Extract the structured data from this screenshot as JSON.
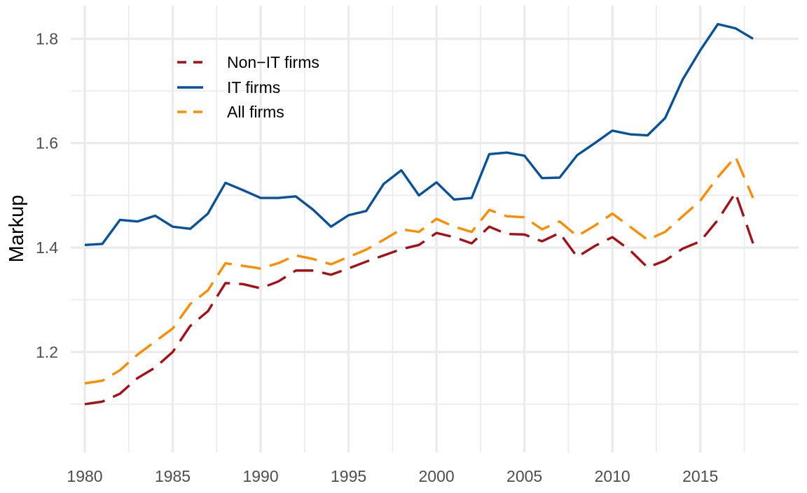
{
  "chart_data": {
    "type": "line",
    "title": "",
    "xlabel": "",
    "ylabel": "Markup",
    "xlim": [
      1980,
      2018
    ],
    "ylim": [
      1.1,
      1.83
    ],
    "x_ticks": [
      "1980",
      "1985",
      "1990",
      "1995",
      "2000",
      "2005",
      "2010",
      "2015"
    ],
    "y_ticks": [
      "1.2",
      "1.4",
      "1.6",
      "1.8"
    ],
    "grid": true,
    "legend_position": "top-left",
    "x": [
      1980,
      1981,
      1982,
      1983,
      1984,
      1985,
      1986,
      1987,
      1988,
      1989,
      1990,
      1991,
      1992,
      1993,
      1994,
      1995,
      1996,
      1997,
      1998,
      1999,
      2000,
      2001,
      2002,
      2003,
      2004,
      2005,
      2006,
      2007,
      2008,
      2009,
      2010,
      2011,
      2012,
      2013,
      2014,
      2015,
      2016,
      2017,
      2018
    ],
    "series": [
      {
        "name": "Non−IT firms",
        "color": "#a50f15",
        "dash": "dashed",
        "values": [
          1.1,
          1.105,
          1.12,
          1.15,
          1.17,
          1.2,
          1.25,
          1.278,
          1.332,
          1.33,
          1.322,
          1.335,
          1.356,
          1.356,
          1.348,
          1.36,
          1.373,
          1.385,
          1.397,
          1.405,
          1.428,
          1.42,
          1.408,
          1.44,
          1.426,
          1.425,
          1.412,
          1.428,
          1.382,
          1.403,
          1.42,
          1.395,
          1.362,
          1.375,
          1.398,
          1.412,
          1.453,
          1.505,
          1.408
        ]
      },
      {
        "name": "IT firms",
        "color": "#08519c",
        "dash": "solid",
        "values": [
          1.405,
          1.407,
          1.453,
          1.45,
          1.461,
          1.44,
          1.436,
          1.465,
          1.524,
          1.51,
          1.495,
          1.495,
          1.498,
          1.472,
          1.44,
          1.462,
          1.47,
          1.522,
          1.548,
          1.5,
          1.525,
          1.492,
          1.495,
          1.579,
          1.582,
          1.576,
          1.533,
          1.534,
          1.577,
          1.6,
          1.624,
          1.617,
          1.615,
          1.648,
          1.722,
          1.778,
          1.828,
          1.82,
          1.8
        ]
      },
      {
        "name": "All firms",
        "color": "#ff8c00",
        "dash": "dashed",
        "values": [
          1.14,
          1.145,
          1.165,
          1.195,
          1.22,
          1.245,
          1.292,
          1.318,
          1.37,
          1.365,
          1.36,
          1.37,
          1.385,
          1.378,
          1.368,
          1.382,
          1.396,
          1.415,
          1.435,
          1.43,
          1.455,
          1.44,
          1.43,
          1.472,
          1.46,
          1.458,
          1.435,
          1.45,
          1.422,
          1.442,
          1.465,
          1.44,
          1.415,
          1.43,
          1.46,
          1.49,
          1.535,
          1.574,
          1.495
        ]
      }
    ]
  }
}
